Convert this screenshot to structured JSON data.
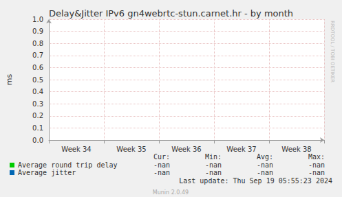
{
  "chart_data": {
    "type": "line",
    "title": "Delay&Jitter IPv6 gn4webrtc-stun.carnet.hr - by month",
    "y_label": "ms",
    "categories": [
      "Week 34",
      "Week 35",
      "Week 36",
      "Week 37",
      "Week 38"
    ],
    "series": [
      {
        "name": "Average round trip delay",
        "color": "#00cc00",
        "values": [
          null,
          null,
          null,
          null,
          null
        ],
        "stats": [
          "-nan",
          "-nan",
          "-nan",
          "-nan"
        ]
      },
      {
        "name": "Average jitter",
        "color": "#0066b3",
        "values": [
          null,
          null,
          null,
          null,
          null
        ],
        "stats": [
          "-nan",
          "-nan",
          "-nan",
          "-nan"
        ]
      }
    ],
    "ylim": [
      0,
      1
    ],
    "yticks": [
      {
        "value": 0,
        "label": "0.0"
      },
      0.1,
      0.2,
      0.3,
      0.4,
      0.5,
      0.6,
      0.7,
      0.8,
      0.9,
      {
        "value": 1,
        "label": "1.0"
      }
    ],
    "grid": true,
    "stat_headers": [
      "Cur:",
      "Min:",
      "Avg:",
      "Max:"
    ],
    "last_update": "Last update: Thu Sep 19 05:55:23 2024",
    "footer": "Munin 2.0.49",
    "watermark": "RRDTOOL / TOBI OETIKER"
  }
}
